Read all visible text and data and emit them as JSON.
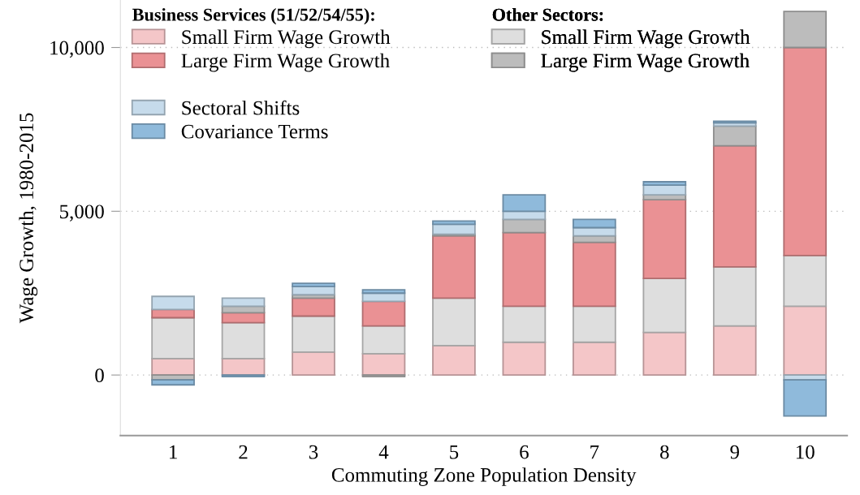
{
  "chart_data": {
    "type": "bar",
    "stacked": true,
    "xlabel": "Commuting Zone Population Density",
    "ylabel": "Wage Growth, 1980-2015",
    "categories": [
      "1",
      "2",
      "3",
      "4",
      "5",
      "6",
      "7",
      "8",
      "9",
      "10"
    ],
    "ylim": [
      -1850,
      11450
    ],
    "yticks": [
      {
        "value": 0,
        "label": "0"
      },
      {
        "value": 5000,
        "label": "5,000"
      },
      {
        "value": 10000,
        "label": "10,000"
      }
    ],
    "grid": "y",
    "legend": "top left",
    "legend_title": [
      "Business Services (51/52/54/55):",
      "Other Sectors:"
    ],
    "series": [
      {
        "name": "Small Firm Wage Growth",
        "color": "#f4c6c8",
        "values": [
          500,
          500,
          700,
          650,
          900,
          1000,
          1000,
          1300,
          1500,
          2100
        ]
      },
      {
        "name": "Small Firm Wage Growth",
        "color": "#dedede",
        "values": [
          1250,
          1100,
          1100,
          850,
          1450,
          1100,
          1100,
          1650,
          1800,
          1550
        ]
      },
      {
        "name": "Large Firm Wage Growth",
        "color": "#ea9194",
        "values": [
          250,
          300,
          550,
          750,
          1900,
          2250,
          1950,
          2400,
          3700,
          6350
        ]
      },
      {
        "name": "Large Firm Wage Growth",
        "color": "#bcbcbc",
        "values": [
          -150,
          200,
          100,
          -50,
          50,
          400,
          200,
          150,
          600,
          1100
        ]
      },
      {
        "name": "Sectoral Shifts",
        "color": "#c6dbeb",
        "values": [
          400,
          250,
          250,
          250,
          300,
          250,
          250,
          300,
          100,
          -150
        ]
      },
      {
        "name": "Covariance Terms",
        "color": "#8fbadb",
        "values": [
          -150,
          -50,
          100,
          100,
          100,
          500,
          250,
          100,
          50,
          -1100
        ]
      }
    ]
  }
}
